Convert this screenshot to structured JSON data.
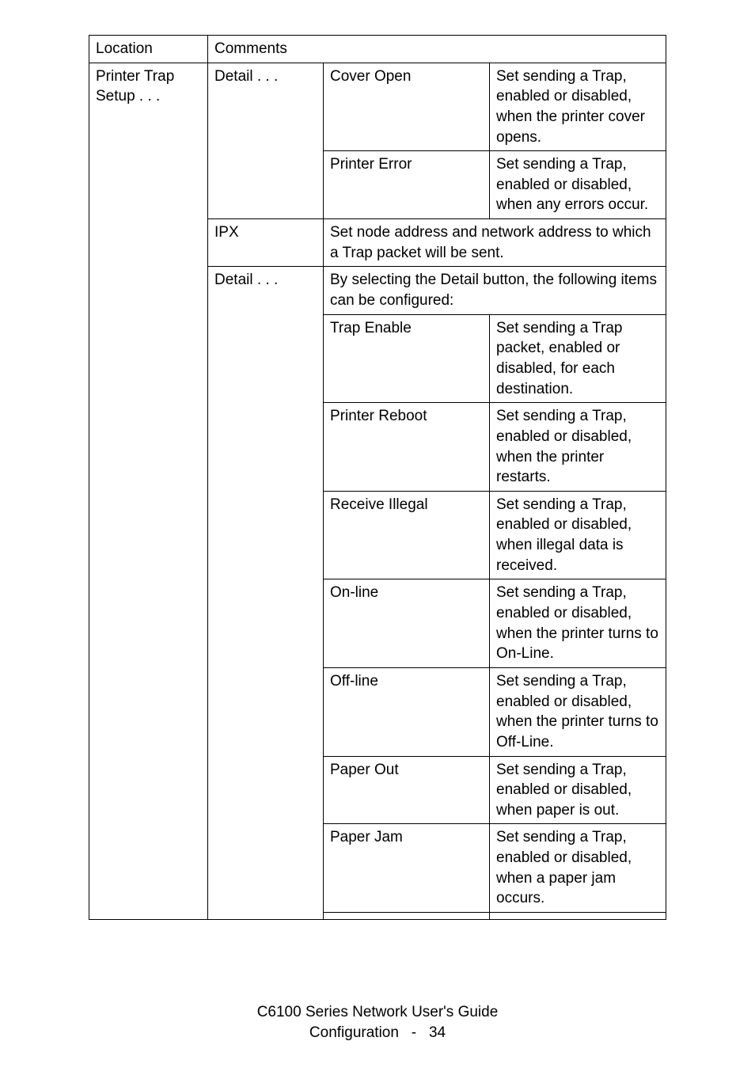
{
  "header": {
    "col1": "Location",
    "col2": "Comments"
  },
  "rows": {
    "location": "Printer Trap Setup . . .",
    "detail1": {
      "label": "Detail . . .",
      "items": [
        {
          "name": "Cover Open",
          "desc": "Set sending a Trap, enabled or disabled, when the printer cover opens."
        },
        {
          "name": "Printer Error",
          "desc": "Set sending a Trap, enabled or disabled, when any errors occur."
        }
      ]
    },
    "ipx": {
      "label": "IPX",
      "desc": "Set node address and network address to which a Trap packet will be sent."
    },
    "detail2": {
      "label": "Detail . . .",
      "intro": "By selecting the Detail button, the following items can be configured:",
      "items": [
        {
          "name": "Trap Enable",
          "desc": "Set sending a Trap packet, enabled or disabled, for each destination."
        },
        {
          "name": "Printer Reboot",
          "desc": "Set sending a Trap, enabled or disabled, when the printer restarts."
        },
        {
          "name": "Receive Illegal",
          "desc": "Set sending a Trap, enabled or disabled, when illegal data is received."
        },
        {
          "name": "On-line",
          "desc": "Set sending a Trap, enabled or disabled, when the printer turns to On-Line."
        },
        {
          "name": "Off-line",
          "desc": "Set sending a Trap, enabled or disabled, when the printer turns to Off-Line."
        },
        {
          "name": "Paper Out",
          "desc": "Set sending a Trap, enabled or disabled, when paper is out."
        },
        {
          "name": "Paper Jam",
          "desc": "Set sending a Trap, enabled or disabled, when a paper jam occurs."
        }
      ]
    }
  },
  "footer": {
    "line1": "C6100 Series Network User's Guide",
    "line2_a": "Configuration",
    "line2_b": "-",
    "line2_c": "34"
  }
}
